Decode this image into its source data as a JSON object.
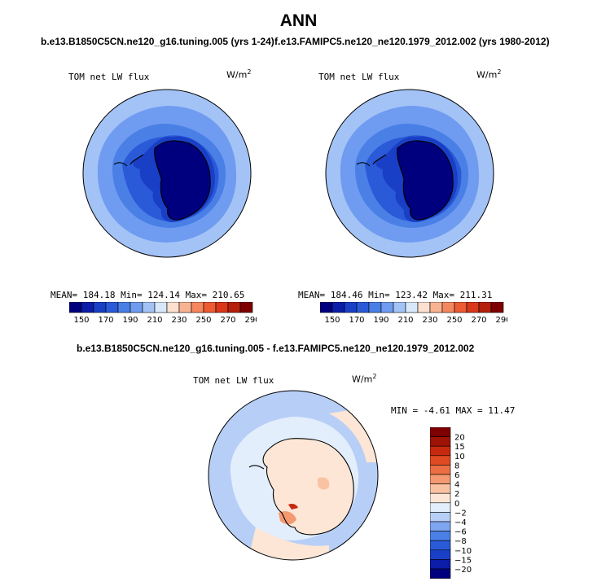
{
  "page": {
    "title": "ANN",
    "left_case": "b.e13.B1850C5CN.ne120_g16.tuning.005 (yrs 1-24)",
    "right_case": "f.e13.FAMIPC5.ne120_ne120.1979_2012.002 (yrs 1980-2012)",
    "diff_case": "b.e13.B1850C5CN.ne120_g16.tuning.005 - f.e13.FAMIPC5.ne120_ne120.1979_2012.002"
  },
  "panels": {
    "left": {
      "field": "TOM net LW flux",
      "units": "W/m",
      "units_exp": "2",
      "stats": "MEAN= 184.18   Min= 124.14   Max= 210.65"
    },
    "right": {
      "field": "TOM net LW flux",
      "units": "W/m",
      "units_exp": "2",
      "stats": "MEAN= 184.46   Min= 123.42   Max= 211.31"
    },
    "diff": {
      "field": "TOM net LW flux",
      "units": "W/m",
      "units_exp": "2",
      "stats": "MIN =   -4.61  MAX =   11.47"
    }
  },
  "colors": {
    "abs_scale": [
      "#00007f",
      "#0a1ca8",
      "#1a3fc7",
      "#2a5ad8",
      "#4a7fe6",
      "#6f9cf0",
      "#a3c3f6",
      "#d8e8fb",
      "#fde0cf",
      "#f9b393",
      "#f4875f",
      "#ec5b32",
      "#d9361a",
      "#b51f0c",
      "#7f0000"
    ],
    "diff_scale": [
      "#00007f",
      "#0a1ca8",
      "#1a3fc7",
      "#2a5ad8",
      "#4a7fe6",
      "#7ea6f0",
      "#b7cff7",
      "#e3eefc",
      "#fde6d6",
      "#f9c3a3",
      "#f39a72",
      "#ec6f44",
      "#e04a22",
      "#c6290e",
      "#9e1306",
      "#7f0000"
    ]
  },
  "chart_data": [
    {
      "type": "heatmap",
      "projection": "south-polar-stereographic",
      "title": "TOM net LW flux",
      "units": "W/m2",
      "mean": 184.18,
      "min": 124.14,
      "max": 210.65,
      "colorbar_ticks": [
        "150",
        "170",
        "190",
        "210",
        "230",
        "250",
        "270",
        "290"
      ],
      "colorbar_levels": [
        140,
        150,
        160,
        170,
        180,
        190,
        200,
        210,
        220,
        230,
        240,
        250,
        260,
        270,
        280,
        290
      ]
    },
    {
      "type": "heatmap",
      "projection": "south-polar-stereographic",
      "title": "TOM net LW flux",
      "units": "W/m2",
      "mean": 184.46,
      "min": 123.42,
      "max": 211.31,
      "colorbar_ticks": [
        "150",
        "170",
        "190",
        "210",
        "230",
        "250",
        "270",
        "290"
      ],
      "colorbar_levels": [
        140,
        150,
        160,
        170,
        180,
        190,
        200,
        210,
        220,
        230,
        240,
        250,
        260,
        270,
        280,
        290
      ]
    },
    {
      "type": "heatmap",
      "projection": "south-polar-stereographic",
      "title": "TOM net LW flux",
      "units": "W/m2",
      "min": -4.61,
      "max": 11.47,
      "colorbar_ticks": [
        "20",
        "15",
        "10",
        "8",
        "6",
        "4",
        "2",
        "0",
        "−2",
        "−4",
        "−6",
        "−8",
        "−10",
        "−15",
        "−20"
      ],
      "colorbar_levels": [
        20,
        15,
        10,
        8,
        6,
        4,
        2,
        0,
        -2,
        -4,
        -6,
        -8,
        -10,
        -15,
        -20
      ]
    }
  ]
}
